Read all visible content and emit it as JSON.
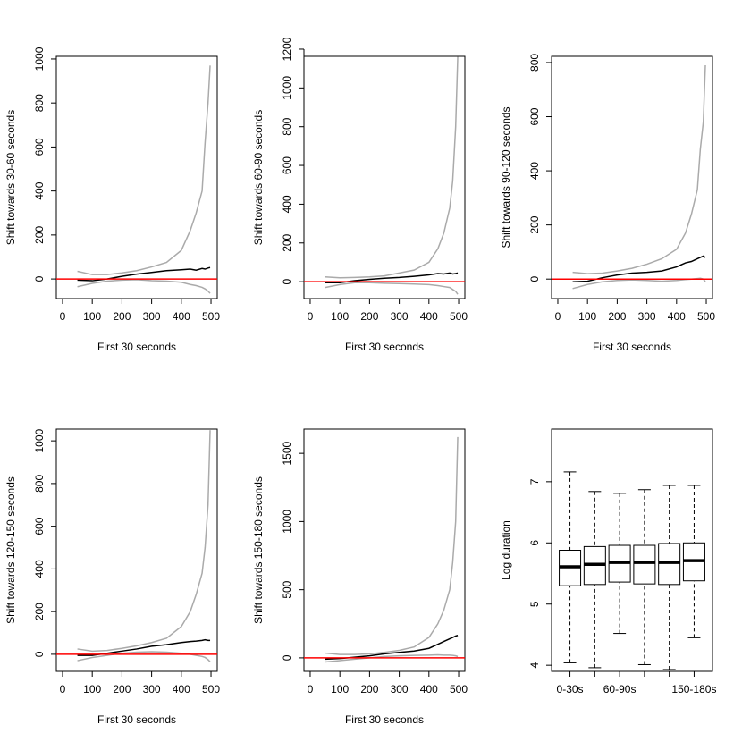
{
  "chart_data": [
    {
      "type": "line",
      "xlabel": "First 30 seconds",
      "ylabel": "Shift towards 30-60 seconds",
      "x": [
        50,
        100,
        150,
        200,
        250,
        300,
        350,
        400,
        430,
        450,
        470,
        480,
        490,
        497
      ],
      "series": [
        {
          "color": "#aaaaaa",
          "values": [
            35,
            20,
            20,
            28,
            38,
            55,
            75,
            130,
            220,
            300,
            400,
            620,
            800,
            970
          ]
        },
        {
          "color": "#000000",
          "values": [
            -5,
            -8,
            0,
            12,
            22,
            30,
            38,
            42,
            45,
            40,
            48,
            45,
            50,
            52
          ]
        },
        {
          "color": "#aaaaaa",
          "values": [
            -35,
            -20,
            -10,
            -5,
            -3,
            -8,
            -10,
            -15,
            -25,
            -30,
            -38,
            -45,
            -55,
            -65
          ]
        }
      ],
      "xlim": [
        -21,
        521
      ],
      "ylim": [
        -89,
        1012
      ],
      "xticks": [
        0,
        100,
        200,
        300,
        400,
        500
      ],
      "yticks": [
        0,
        200,
        400,
        600,
        800,
        1000
      ],
      "hline": 0,
      "hline_color": "#ff0000"
    },
    {
      "type": "line",
      "xlabel": "First 30 seconds",
      "ylabel": "Shift towards 60-90 seconds",
      "x": [
        50,
        100,
        150,
        200,
        250,
        300,
        350,
        400,
        430,
        450,
        470,
        480,
        490,
        497
      ],
      "series": [
        {
          "color": "#aaaaaa",
          "values": [
            25,
            20,
            22,
            25,
            30,
            45,
            60,
            100,
            170,
            250,
            380,
            520,
            800,
            1160
          ]
        },
        {
          "color": "#000000",
          "values": [
            -5,
            -5,
            5,
            12,
            18,
            22,
            28,
            35,
            42,
            40,
            45,
            40,
            42,
            45
          ]
        },
        {
          "color": "#aaaaaa",
          "values": [
            -30,
            -15,
            -5,
            -5,
            -8,
            -10,
            -12,
            -15,
            -20,
            -25,
            -30,
            -40,
            -50,
            -65
          ]
        }
      ],
      "xlim": [
        -21,
        521
      ],
      "ylim": [
        -87,
        1163
      ],
      "xticks": [
        0,
        100,
        200,
        300,
        400,
        500
      ],
      "yticks": [
        0,
        200,
        400,
        600,
        800,
        1000,
        1200
      ],
      "hline": 0,
      "hline_color": "#ff0000"
    },
    {
      "type": "line",
      "xlabel": "First 30 seconds",
      "ylabel": "Shift towards 90-120 seconds",
      "x": [
        50,
        100,
        150,
        200,
        250,
        300,
        350,
        400,
        430,
        450,
        470,
        480,
        490,
        497
      ],
      "series": [
        {
          "color": "#aaaaaa",
          "values": [
            25,
            20,
            22,
            30,
            40,
            55,
            75,
            110,
            170,
            240,
            330,
            480,
            580,
            790
          ]
        },
        {
          "color": "#000000",
          "values": [
            -10,
            -8,
            5,
            15,
            22,
            25,
            30,
            45,
            60,
            65,
            75,
            80,
            85,
            80
          ]
        },
        {
          "color": "#aaaaaa",
          "values": [
            -35,
            -20,
            -10,
            -5,
            -3,
            -5,
            -8,
            -5,
            -2,
            0,
            2,
            3,
            0,
            -10
          ]
        }
      ],
      "xlim": [
        -21,
        521
      ],
      "ylim": [
        -72,
        823
      ],
      "xticks": [
        0,
        100,
        200,
        300,
        400,
        500
      ],
      "yticks": [
        0,
        200,
        400,
        600,
        800
      ],
      "hline": 0,
      "hline_color": "#ff0000"
    },
    {
      "type": "line",
      "xlabel": "First 30 seconds",
      "ylabel": "Shift towards 120-150 seconds",
      "x": [
        50,
        100,
        150,
        200,
        250,
        300,
        350,
        400,
        430,
        450,
        470,
        480,
        490,
        497
      ],
      "series": [
        {
          "color": "#aaaaaa",
          "values": [
            25,
            15,
            18,
            28,
            40,
            55,
            75,
            130,
            200,
            280,
            380,
            500,
            700,
            1050
          ]
        },
        {
          "color": "#000000",
          "values": [
            -5,
            -5,
            5,
            15,
            25,
            38,
            45,
            55,
            60,
            62,
            65,
            68,
            65,
            65
          ]
        },
        {
          "color": "#aaaaaa",
          "values": [
            -30,
            -15,
            -5,
            5,
            10,
            12,
            10,
            5,
            0,
            -5,
            -10,
            -15,
            -25,
            -35
          ]
        }
      ],
      "xlim": [
        -21,
        521
      ],
      "ylim": [
        -80,
        1055
      ],
      "xticks": [
        0,
        100,
        200,
        300,
        400,
        500
      ],
      "yticks": [
        0,
        200,
        400,
        600,
        800,
        1000
      ],
      "hline": 0,
      "hline_color": "#ff0000"
    },
    {
      "type": "line",
      "xlabel": "First 30 seconds",
      "ylabel": "Shift towards 150-180 seconds",
      "x": [
        50,
        100,
        150,
        200,
        250,
        300,
        350,
        400,
        430,
        450,
        470,
        480,
        490,
        497
      ],
      "series": [
        {
          "color": "#aaaaaa",
          "values": [
            35,
            25,
            25,
            30,
            40,
            55,
            80,
            150,
            250,
            350,
            500,
            700,
            1000,
            1620
          ]
        },
        {
          "color": "#000000",
          "values": [
            -10,
            -5,
            5,
            15,
            30,
            40,
            50,
            70,
            100,
            120,
            140,
            150,
            160,
            165
          ]
        },
        {
          "color": "#aaaaaa",
          "values": [
            -30,
            -20,
            -10,
            0,
            10,
            15,
            18,
            20,
            22,
            20,
            20,
            18,
            15,
            10
          ]
        }
      ],
      "xlim": [
        -21,
        521
      ],
      "ylim": [
        -99,
        1678
      ],
      "xticks": [
        0,
        100,
        200,
        300,
        400,
        500
      ],
      "yticks": [
        0,
        500,
        1000,
        1500
      ],
      "hline": 0,
      "hline_color": "#ff0000"
    },
    {
      "type": "box",
      "ylabel": "Log duration",
      "categories": [
        "0-30s",
        null,
        "60-90s",
        null,
        null,
        "150-180s"
      ],
      "boxes": [
        {
          "whislo": 4.04,
          "q1": 5.3,
          "med": 5.61,
          "q3": 5.88,
          "whishi": 7.16
        },
        {
          "whislo": 3.96,
          "q1": 5.32,
          "med": 5.65,
          "q3": 5.94,
          "whishi": 6.84
        },
        {
          "whislo": 4.52,
          "q1": 5.36,
          "med": 5.68,
          "q3": 5.96,
          "whishi": 6.81
        },
        {
          "whislo": 4.01,
          "q1": 5.33,
          "med": 5.68,
          "q3": 5.96,
          "whishi": 6.87
        },
        {
          "whislo": 3.93,
          "q1": 5.32,
          "med": 5.68,
          "q3": 5.99,
          "whishi": 6.94
        },
        {
          "whislo": 4.45,
          "q1": 5.38,
          "med": 5.71,
          "q3": 6.0,
          "whishi": 6.94
        }
      ],
      "ylim": [
        3.9,
        7.86
      ],
      "yticks": [
        4,
        5,
        6,
        7
      ]
    }
  ]
}
